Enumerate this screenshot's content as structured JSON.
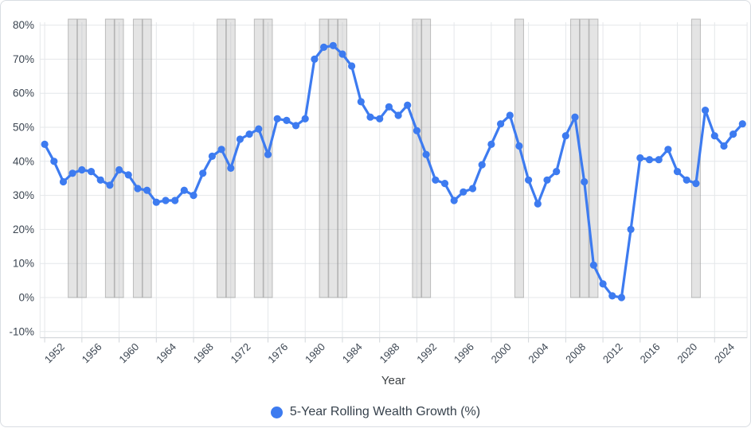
{
  "chart_data": {
    "type": "line",
    "title": "",
    "xlabel": "Year",
    "ylabel": "",
    "legend_position": "bottom",
    "grid": true,
    "ylim": [
      -10,
      80
    ],
    "y_tick_labels": [
      "80%",
      "70%",
      "60%",
      "50%",
      "40%",
      "30%",
      "20%",
      "10%",
      "0%",
      "-10%"
    ],
    "x_tick_labels": [
      "1952",
      "1956",
      "1960",
      "1964",
      "1968",
      "1972",
      "1976",
      "1980",
      "1984",
      "1988",
      "1992",
      "1996",
      "2000",
      "2004",
      "2008",
      "2012",
      "2016",
      "2020",
      "2024"
    ],
    "x": [
      1950,
      1951,
      1952,
      1953,
      1954,
      1955,
      1956,
      1957,
      1958,
      1959,
      1960,
      1961,
      1962,
      1963,
      1964,
      1965,
      1966,
      1967,
      1968,
      1969,
      1970,
      1971,
      1972,
      1973,
      1974,
      1975,
      1976,
      1977,
      1978,
      1979,
      1980,
      1981,
      1982,
      1983,
      1984,
      1985,
      1986,
      1987,
      1988,
      1989,
      1990,
      1991,
      1992,
      1993,
      1994,
      1995,
      1996,
      1997,
      1998,
      1999,
      2000,
      2001,
      2002,
      2003,
      2004,
      2005,
      2006,
      2007,
      2008,
      2009,
      2010,
      2011,
      2012,
      2013,
      2014,
      2015,
      2016,
      2017,
      2018,
      2019,
      2020,
      2021,
      2022,
      2023,
      2024,
      2025
    ],
    "series": [
      {
        "name": "5-Year Rolling Wealth Growth (%)",
        "values": [
          45,
          40,
          34,
          36.5,
          37.5,
          37,
          34.5,
          33,
          37.5,
          36,
          32,
          31.5,
          28,
          28.5,
          28.5,
          31.5,
          30,
          36.5,
          41.5,
          43.5,
          38,
          46.5,
          48,
          49.5,
          42,
          52.5,
          52,
          50.5,
          52.5,
          70,
          73.5,
          74,
          71.5,
          68,
          57.5,
          53,
          52.5,
          56,
          53.5,
          56.5,
          49,
          42,
          34.5,
          33.5,
          28.5,
          31,
          32,
          39,
          45,
          51,
          53.5,
          44.5,
          34.5,
          27.5,
          34.5,
          37,
          47.5,
          53,
          34,
          9.5,
          4,
          0.5,
          0,
          20,
          41,
          40.5,
          40.5,
          43.5,
          37,
          34.5,
          33.5,
          55,
          47.5,
          44.5,
          48,
          51
        ]
      }
    ],
    "recession_band_years": [
      1953,
      1954,
      1957,
      1958,
      1960,
      1961,
      1969,
      1970,
      1973,
      1974,
      1980,
      1981,
      1982,
      1990,
      1991,
      2001,
      2007,
      2008,
      2009,
      2020
    ]
  },
  "colors": {
    "line": "#3d7bf0",
    "point": "#3d7bf0",
    "band_fill": "#b9b9b9",
    "band_stroke": "#909090",
    "gridline": "#e4e7ea",
    "axis_line": "#d2d6da",
    "tick_text": "#3b4551",
    "axis_title_text": "#3c4043",
    "legend_text": "#36414c"
  }
}
